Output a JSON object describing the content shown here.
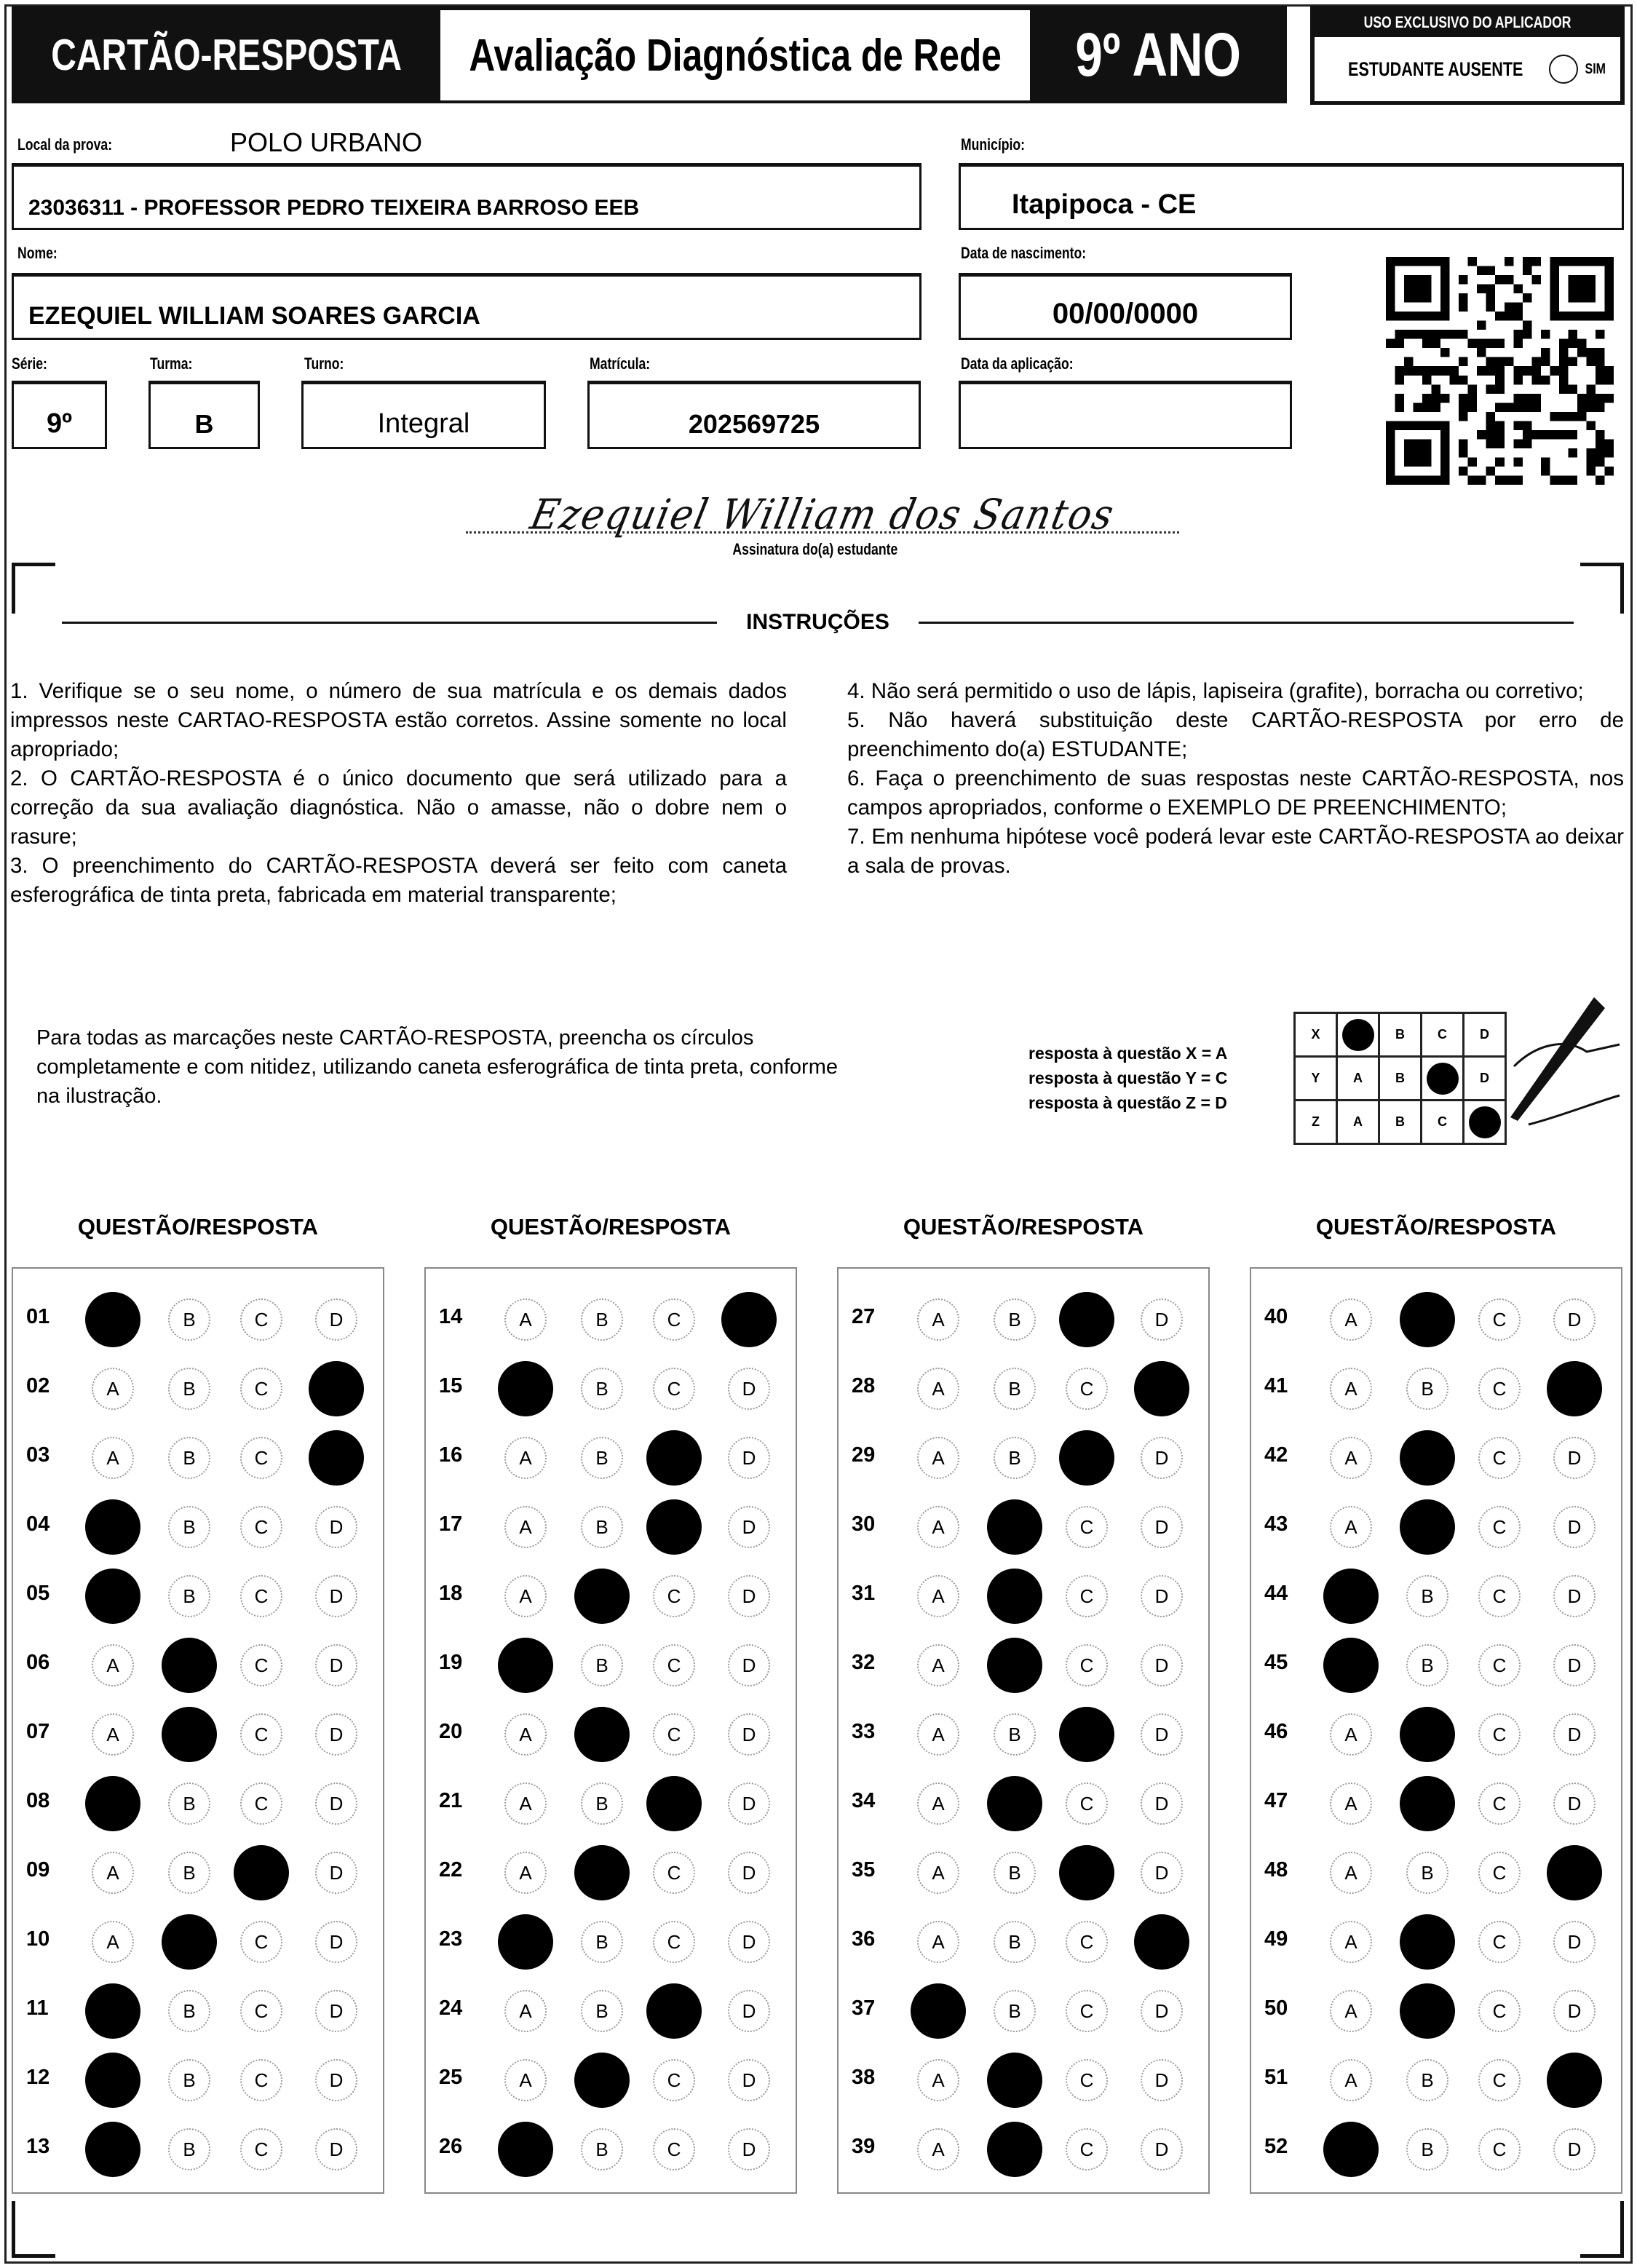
{
  "header": {
    "card_title": "CARTÃO-RESPOSTA",
    "exam_title": "Avaliação Diagnóstica de Rede",
    "grade": "9º ANO",
    "applicator_title": "USO EXCLUSIVO DO APLICADOR",
    "absent_label": "ESTUDANTE AUSENTE",
    "absent_option": "SIM"
  },
  "fields": {
    "local_label": "Local da prova:",
    "local_value": "POLO URBANO",
    "school": "23036311 - PROFESSOR PEDRO TEIXEIRA BARROSO EEB",
    "municipio_label": "Município:",
    "municipio": "Itapipoca - CE",
    "nome_label": "Nome:",
    "nome": "EZEQUIEL WILLIAM SOARES GARCIA",
    "nascimento_label": "Data de nascimento:",
    "nascimento": "00/00/0000",
    "serie_label": "Série:",
    "serie": "9º",
    "turma_label": "Turma:",
    "turma": "B",
    "turno_label": "Turno:",
    "turno": "Integral",
    "matricula_label": "Matrícula:",
    "matricula": "202569725",
    "aplicacao_label": "Data da aplicação:",
    "aplicacao": ""
  },
  "signature": {
    "handwritten": "Ezequiel William dos Santos",
    "label": "Assinatura do(a) estudante"
  },
  "instructions": {
    "title": "INSTRUÇÕES",
    "left": [
      "1. Verifique se o seu nome, o número de sua matrícula e os demais dados impressos neste CARTAO-RESPOSTA estão corretos. Assine somente no local apropriado;",
      "2. O CARTÃO-RESPOSTA é o único documento que será utilizado para a correção da sua avaliação diagnóstica. Não o amasse, não o dobre nem o rasure;",
      "3. O preenchimento do CARTÃO-RESPOSTA deverá ser feito com caneta esferográfica de tinta preta, fabricada em material transparente;"
    ],
    "right": [
      "4. Não será permitido o uso de lápis, lapiseira (grafite), borracha ou corretivo;",
      "5. Não haverá substituição deste CARTÃO-RESPOSTA por erro de preenchimento do(a) ESTUDANTE;",
      "6. Faça o preenchimento de suas respostas neste CARTÃO-RESPOSTA, nos campos apropriados, conforme o EXEMPLO DE PREENCHIMENTO;",
      "7. Em nenhuma hipótese você poderá levar este CARTÃO-RESPOSTA ao deixar a sala de provas."
    ]
  },
  "fill_instruction": "Para todas as marcações neste CARTÃO-RESPOSTA, preencha os círculos completamente e com nitidez, utilizando caneta esferográfica de tinta preta, conforme na ilustração.",
  "example": {
    "lines": [
      "resposta à questão X = A",
      "resposta à questão Y = C",
      "resposta à questão Z = D"
    ],
    "rows": [
      {
        "q": "X",
        "answer": "A"
      },
      {
        "q": "Y",
        "answer": "C"
      },
      {
        "q": "Z",
        "answer": "D"
      }
    ]
  },
  "options": [
    "A",
    "B",
    "C",
    "D"
  ],
  "column_header": "QUESTÃO/RESPOSTA",
  "answers": [
    {
      "q": "01",
      "a": "A"
    },
    {
      "q": "02",
      "a": "D"
    },
    {
      "q": "03",
      "a": "D"
    },
    {
      "q": "04",
      "a": "A"
    },
    {
      "q": "05",
      "a": "A"
    },
    {
      "q": "06",
      "a": "B"
    },
    {
      "q": "07",
      "a": "B"
    },
    {
      "q": "08",
      "a": "A"
    },
    {
      "q": "09",
      "a": "C"
    },
    {
      "q": "10",
      "a": "B"
    },
    {
      "q": "11",
      "a": "A"
    },
    {
      "q": "12",
      "a": "A"
    },
    {
      "q": "13",
      "a": "A"
    },
    {
      "q": "14",
      "a": "D"
    },
    {
      "q": "15",
      "a": "A"
    },
    {
      "q": "16",
      "a": "C"
    },
    {
      "q": "17",
      "a": "C"
    },
    {
      "q": "18",
      "a": "B"
    },
    {
      "q": "19",
      "a": "A"
    },
    {
      "q": "20",
      "a": "B"
    },
    {
      "q": "21",
      "a": "C"
    },
    {
      "q": "22",
      "a": "B"
    },
    {
      "q": "23",
      "a": "A"
    },
    {
      "q": "24",
      "a": "C"
    },
    {
      "q": "25",
      "a": "B"
    },
    {
      "q": "26",
      "a": "A"
    },
    {
      "q": "27",
      "a": "C"
    },
    {
      "q": "28",
      "a": "D"
    },
    {
      "q": "29",
      "a": "C"
    },
    {
      "q": "30",
      "a": "B"
    },
    {
      "q": "31",
      "a": "B"
    },
    {
      "q": "32",
      "a": "B"
    },
    {
      "q": "33",
      "a": "C"
    },
    {
      "q": "34",
      "a": "B"
    },
    {
      "q": "35",
      "a": "C"
    },
    {
      "q": "36",
      "a": "D"
    },
    {
      "q": "37",
      "a": "A"
    },
    {
      "q": "38",
      "a": "B"
    },
    {
      "q": "39",
      "a": "B"
    },
    {
      "q": "40",
      "a": "B"
    },
    {
      "q": "41",
      "a": "D"
    },
    {
      "q": "42",
      "a": "B"
    },
    {
      "q": "43",
      "a": "B"
    },
    {
      "q": "44",
      "a": "A"
    },
    {
      "q": "45",
      "a": "A"
    },
    {
      "q": "46",
      "a": "B"
    },
    {
      "q": "47",
      "a": "B"
    },
    {
      "q": "48",
      "a": "D"
    },
    {
      "q": "49",
      "a": "B"
    },
    {
      "q": "50",
      "a": "B"
    },
    {
      "q": "51",
      "a": "D"
    },
    {
      "q": "52",
      "a": "A"
    }
  ]
}
